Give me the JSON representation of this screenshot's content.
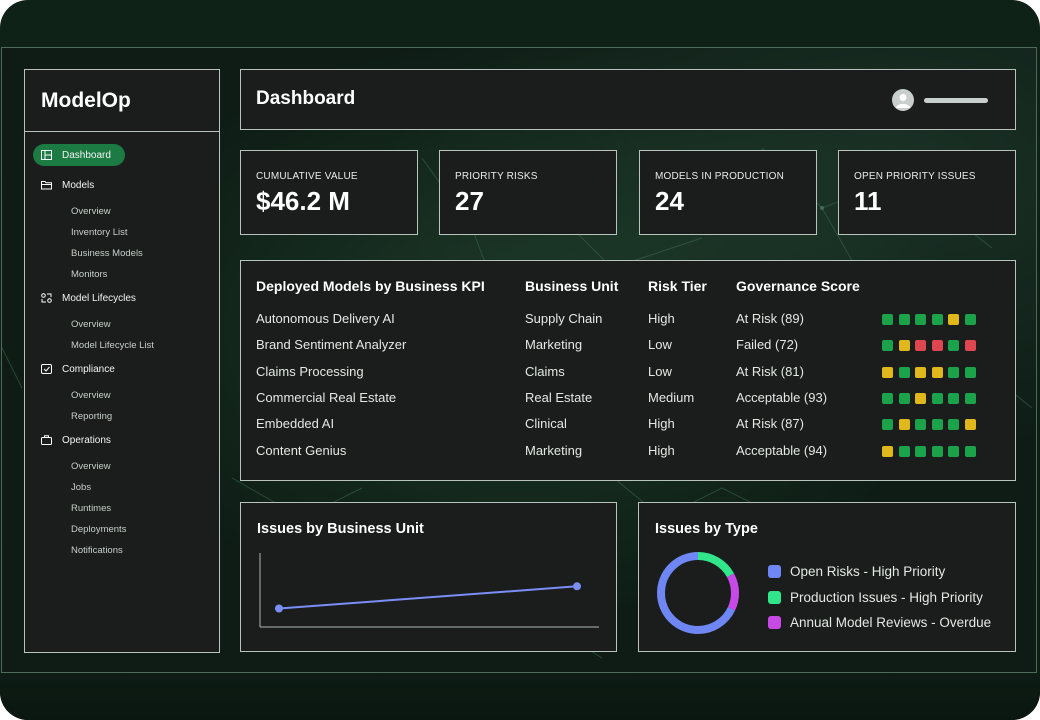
{
  "app": {
    "brand": "ModelOp"
  },
  "header": {
    "title": "Dashboard"
  },
  "sidebar": {
    "items": [
      {
        "label": "Dashboard",
        "icon": "dashboard-icon",
        "active": true,
        "children": []
      },
      {
        "label": "Models",
        "icon": "folder-icon",
        "children": [
          "Overview",
          "Inventory List",
          "Business Models",
          "Monitors"
        ]
      },
      {
        "label": "Model Lifecycles",
        "icon": "lifecycle-icon",
        "children": [
          "Overview",
          "Model Lifecycle List"
        ]
      },
      {
        "label": "Compliance",
        "icon": "checkbox-icon",
        "children": [
          "Overview",
          "Reporting"
        ]
      },
      {
        "label": "Operations",
        "icon": "briefcase-icon",
        "children": [
          "Overview",
          "Jobs",
          "Runtimes",
          "Deployments",
          "Notifications"
        ]
      }
    ]
  },
  "kpis": [
    {
      "label": "CUMULATIVE VALUE",
      "value": "$46.2 M"
    },
    {
      "label": "PRIORITY RISKS",
      "value": "27"
    },
    {
      "label": "MODELS IN PRODUCTION",
      "value": "24"
    },
    {
      "label": "OPEN PRIORITY ISSUES",
      "value": "11"
    }
  ],
  "table": {
    "headers": [
      "Deployed Models by Business KPI",
      "Business Unit",
      "Risk Tier",
      "Governance Score"
    ],
    "rows": [
      {
        "model": "Autonomous Delivery AI",
        "unit": "Supply Chain",
        "tier": "High",
        "score": "At Risk (89)",
        "squares": [
          "green",
          "green",
          "green",
          "green",
          "yellow",
          "green"
        ]
      },
      {
        "model": "Brand Sentiment Analyzer",
        "unit": "Marketing",
        "tier": "Low",
        "score": "Failed (72)",
        "squares": [
          "green",
          "yellow",
          "red",
          "red",
          "green",
          "red"
        ]
      },
      {
        "model": "Claims Processing",
        "unit": "Claims",
        "tier": "Low",
        "score": "At Risk (81)",
        "squares": [
          "yellow",
          "green",
          "yellow",
          "yellow",
          "green",
          "green"
        ]
      },
      {
        "model": "Commercial Real Estate",
        "unit": "Real Estate",
        "tier": "Medium",
        "score": "Acceptable (93)",
        "squares": [
          "green",
          "green",
          "yellow",
          "green",
          "green",
          "green"
        ]
      },
      {
        "model": "Embedded AI",
        "unit": "Clinical",
        "tier": "High",
        "score": "At Risk (87)",
        "squares": [
          "green",
          "yellow",
          "green",
          "green",
          "green",
          "yellow"
        ]
      },
      {
        "model": "Content Genius",
        "unit": "Marketing",
        "tier": "High",
        "score": "Acceptable (94)",
        "squares": [
          "yellow",
          "green",
          "green",
          "green",
          "green",
          "green"
        ]
      }
    ]
  },
  "colors": {
    "green": "#1aa34a",
    "yellow": "#e1b81c",
    "red": "#e0464f",
    "accent": "#1c7a43",
    "line": "#7b8df7"
  },
  "issues_by_unit": {
    "title": "Issues by Business Unit",
    "chart_data": {
      "type": "line",
      "x": [
        0,
        1
      ],
      "values": [
        1.0,
        2.2
      ],
      "ylim": [
        0,
        4
      ],
      "title": "Issues by Business Unit",
      "xlabel": "",
      "ylabel": ""
    }
  },
  "issues_by_type": {
    "title": "Issues by Type",
    "chart_data": {
      "type": "pie",
      "donut": true,
      "labels": [
        "Open Risks - High Priority",
        "Production Issues - High Priority",
        "Annual Model Reviews - Overdue"
      ],
      "values": [
        68,
        17,
        15
      ],
      "colors": [
        "#6f86f5",
        "#31e58a",
        "#c84ae6"
      ]
    }
  }
}
